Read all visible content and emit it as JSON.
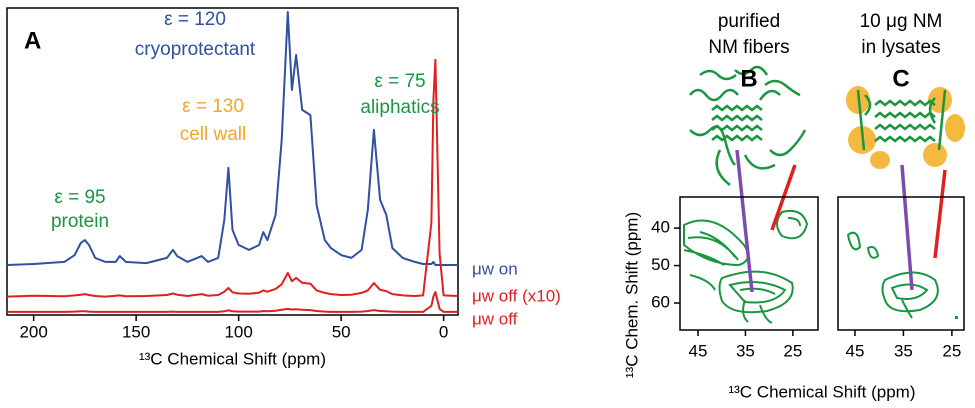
{
  "chart_data": [
    {
      "type": "line",
      "panel_label": "A",
      "x": [
        213,
        200,
        185,
        180,
        177,
        175,
        173,
        170,
        165,
        160,
        158,
        155,
        145,
        135,
        132,
        130,
        125,
        118,
        115,
        110,
        107,
        105,
        103,
        100,
        95,
        90,
        88,
        86,
        82,
        79,
        76,
        74,
        72,
        69,
        65,
        62,
        58,
        55,
        50,
        45,
        40,
        37,
        34,
        31,
        28,
        25,
        20,
        17,
        14,
        10,
        6,
        5,
        4,
        2,
        0,
        -7
      ],
      "xlim": [
        213,
        -7
      ],
      "xticks": [
        200,
        150,
        100,
        50,
        0
      ],
      "ylim": [
        0,
        100
      ],
      "x_label": "¹³C Chemical Shift (ppm)",
      "series": [
        {
          "name": "μw on",
          "color": "#3050a0",
          "values": [
            16.3,
            16.6,
            17.3,
            19.5,
            23.5,
            24.4,
            22.8,
            18.6,
            17.3,
            17.3,
            19.2,
            17.3,
            16.9,
            18.6,
            21.2,
            19.2,
            17.3,
            19.2,
            17.3,
            18.6,
            30.9,
            47.9,
            27.7,
            22.8,
            21.2,
            22.8,
            27.0,
            24.4,
            32.6,
            57.0,
            98.7,
            73.3,
            84.7,
            66.8,
            65.1,
            35.8,
            24.4,
            21.8,
            19.5,
            18.6,
            21.2,
            34.2,
            60.3,
            37.5,
            32.6,
            21.8,
            18.6,
            17.9,
            17.3,
            16.6,
            16.6,
            17.3,
            16.3,
            16.3,
            16.3,
            16.3
          ]
        },
        {
          "name": "μw off (x10)",
          "color": "#e02020",
          "values": [
            6.0,
            6.3,
            6.1,
            6.4,
            6.6,
            6.8,
            6.5,
            6.2,
            6.0,
            6.3,
            6.4,
            6.1,
            6.2,
            6.5,
            7.0,
            6.6,
            6.2,
            6.8,
            6.3,
            6.5,
            7.6,
            8.8,
            7.4,
            7.0,
            6.9,
            7.3,
            8.0,
            7.6,
            8.5,
            10.0,
            13.7,
            11.0,
            12.1,
            10.5,
            10.2,
            8.0,
            7.2,
            6.8,
            6.5,
            6.6,
            7.2,
            8.0,
            10.4,
            8.2,
            7.8,
            6.8,
            6.4,
            6.3,
            6.2,
            6.4,
            30.0,
            70.0,
            83.1,
            20.0,
            6.4,
            6.2
          ]
        },
        {
          "name": "μw off",
          "color": "#e02020",
          "values": [
            1.0,
            1.0,
            1.0,
            1.1,
            1.2,
            1.2,
            1.1,
            1.0,
            1.0,
            1.0,
            1.0,
            1.0,
            1.0,
            1.0,
            1.1,
            1.0,
            1.0,
            1.0,
            1.0,
            1.0,
            1.2,
            1.5,
            1.2,
            1.1,
            1.1,
            1.1,
            1.3,
            1.2,
            1.4,
            1.7,
            2.0,
            1.8,
            1.9,
            1.7,
            1.6,
            1.3,
            1.1,
            1.0,
            1.0,
            1.0,
            1.1,
            1.3,
            1.6,
            1.3,
            1.2,
            1.1,
            1.0,
            1.0,
            1.0,
            1.0,
            3.0,
            6.0,
            7.5,
            2.0,
            1.0,
            1.0
          ]
        }
      ],
      "annotations": [
        {
          "lines": [
            "ε = 120",
            "cryoprotectant"
          ],
          "color": "#3050a0"
        },
        {
          "lines": [
            "ε = 130",
            "cell wall"
          ],
          "color": "#f5a623"
        },
        {
          "lines": [
            "ε = 75",
            "aliphatics"
          ],
          "color": "#1a9641"
        },
        {
          "lines": [
            "ε = 95",
            "protein"
          ],
          "color": "#1a9641"
        }
      ]
    },
    {
      "type": "contour",
      "panel_label": "B",
      "title": [
        "purified",
        "NM fibers"
      ],
      "xlim": [
        48.8,
        19.7
      ],
      "xticks": [
        45,
        35,
        25
      ],
      "ylim": [
        31.7,
        67.2
      ],
      "yticks": [
        40,
        50,
        60
      ],
      "x_label": "¹³C Chemical Shift (ppm)",
      "y_label": "¹³C Chem. Shift (ppm)"
    },
    {
      "type": "contour",
      "panel_label": "C",
      "title": [
        "10 μg NM",
        "in lysates"
      ],
      "xlim": [
        48.5,
        22.5
      ],
      "xticks": [
        45,
        35,
        25
      ],
      "ylim": [
        31.7,
        67.2
      ]
    }
  ]
}
